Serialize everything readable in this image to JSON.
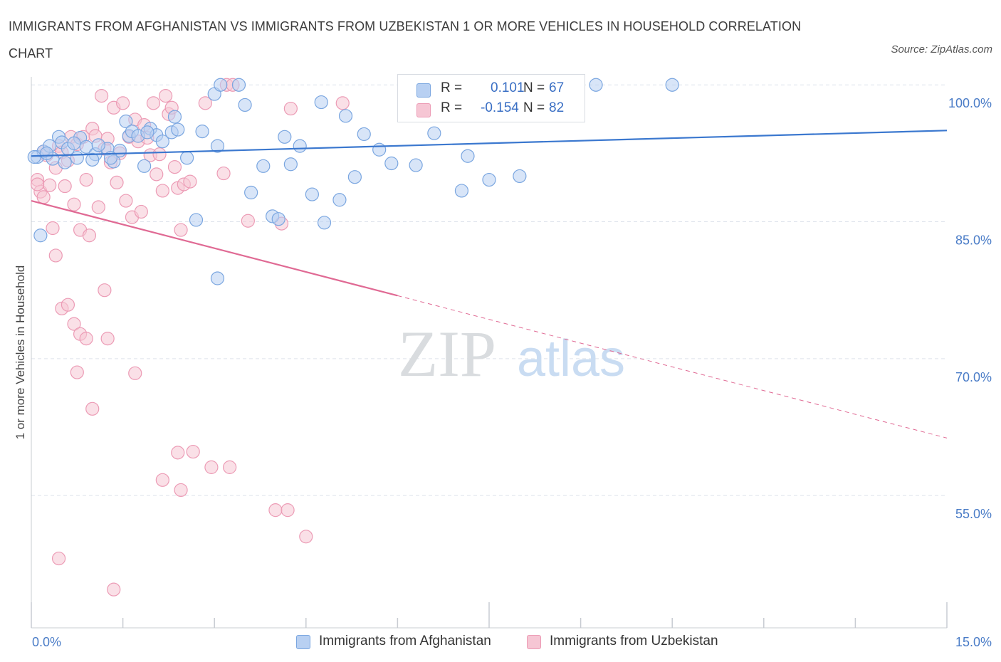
{
  "title": "IMMIGRANTS FROM AFGHANISTAN VS IMMIGRANTS FROM UZBEKISTAN 1 OR MORE VEHICLES IN HOUSEHOLD CORRELATION CHART",
  "source": "Source: ZipAtlas.com",
  "watermark": {
    "zip": "ZIP",
    "atlas": "atlas"
  },
  "legend": {
    "rows": [
      {
        "r_label": "R =",
        "r_value": "0.101",
        "n_label": "N =",
        "n_value": "67"
      },
      {
        "r_label": "R =",
        "r_value": "-0.154",
        "n_label": "N =",
        "n_value": "82"
      }
    ]
  },
  "colors": {
    "blue_fill": "#b8d0f2",
    "blue_stroke": "#7aa6e0",
    "blue_line": "#3b78cf",
    "pink_fill": "#f6c6d4",
    "pink_stroke": "#ec9bb5",
    "pink_line": "#e06a94",
    "grid": "#dde2ea",
    "axis": "#c8ccd2",
    "tick_text": "#4a7cc7"
  },
  "chart_data": {
    "type": "scatter",
    "ylabel": "1 or more Vehicles in Household",
    "xlim": [
      0,
      15
    ],
    "ylim": [
      40.5,
      101.5
    ],
    "x_tick_labels": [
      {
        "value": 0,
        "label": "0.0%"
      },
      {
        "value": 15,
        "label": "15.0%"
      }
    ],
    "y_tick_labels": [
      {
        "value": 100,
        "label": "100.0%"
      },
      {
        "value": 85,
        "label": "85.0%"
      },
      {
        "value": 70,
        "label": "70.0%"
      },
      {
        "value": 55,
        "label": "55.0%"
      }
    ],
    "grid": true,
    "legend_position": "top-center",
    "series": [
      {
        "name": "Immigrants from Afghanistan",
        "color": "#b8d0f2",
        "trend": {
          "x": [
            0,
            15
          ],
          "y": [
            92.2,
            95.0
          ],
          "dashed_from": null
        },
        "points": [
          [
            0.1,
            92.1
          ],
          [
            0.2,
            92.7
          ],
          [
            0.3,
            93.3
          ],
          [
            0.35,
            91.9
          ],
          [
            0.45,
            94.3
          ],
          [
            0.5,
            93.7
          ],
          [
            0.6,
            93.0
          ],
          [
            0.75,
            92.0
          ],
          [
            0.8,
            94.2
          ],
          [
            0.9,
            93.2
          ],
          [
            1.05,
            92.4
          ],
          [
            1.25,
            93.0
          ],
          [
            1.35,
            91.6
          ],
          [
            1.45,
            92.8
          ],
          [
            1.55,
            96.0
          ],
          [
            1.6,
            94.4
          ],
          [
            1.65,
            94.9
          ],
          [
            1.75,
            94.4
          ],
          [
            1.85,
            91.1
          ],
          [
            1.95,
            95.2
          ],
          [
            2.05,
            94.5
          ],
          [
            2.15,
            93.8
          ],
          [
            2.3,
            94.8
          ],
          [
            2.35,
            96.5
          ],
          [
            2.55,
            92.0
          ],
          [
            2.8,
            94.9
          ],
          [
            3.0,
            99.0
          ],
          [
            3.05,
            93.3
          ],
          [
            3.1,
            100.0
          ],
          [
            3.4,
            100.0
          ],
          [
            3.5,
            97.8
          ],
          [
            3.6,
            88.2
          ],
          [
            3.8,
            91.1
          ],
          [
            3.95,
            85.6
          ],
          [
            4.05,
            85.3
          ],
          [
            4.15,
            94.3
          ],
          [
            4.25,
            91.3
          ],
          [
            4.4,
            93.3
          ],
          [
            4.6,
            88.0
          ],
          [
            4.75,
            98.1
          ],
          [
            4.8,
            84.9
          ],
          [
            5.05,
            87.4
          ],
          [
            5.15,
            96.6
          ],
          [
            5.3,
            89.9
          ],
          [
            5.45,
            94.6
          ],
          [
            5.7,
            92.9
          ],
          [
            5.9,
            91.4
          ],
          [
            6.3,
            91.2
          ],
          [
            6.6,
            94.7
          ],
          [
            7.05,
            88.4
          ],
          [
            7.15,
            92.2
          ],
          [
            7.5,
            89.6
          ],
          [
            8.0,
            90.0
          ],
          [
            9.25,
            100.0
          ],
          [
            10.5,
            100.0
          ],
          [
            0.15,
            83.5
          ],
          [
            2.7,
            85.2
          ],
          [
            3.05,
            78.8
          ],
          [
            1.3,
            92.0
          ],
          [
            2.4,
            95.1
          ],
          [
            0.05,
            92.1
          ],
          [
            1.1,
            93.4
          ],
          [
            0.7,
            93.6
          ],
          [
            0.55,
            91.5
          ],
          [
            1.9,
            94.8
          ],
          [
            0.25,
            92.5
          ],
          [
            1.0,
            91.8
          ]
        ]
      },
      {
        "name": "Immigrants from Uzbekistan",
        "color": "#f6c6d4",
        "trend": {
          "x": [
            0,
            15
          ],
          "y": [
            87.3,
            61.3
          ],
          "dashed_from": 6.0
        },
        "points": [
          [
            0.1,
            89.6
          ],
          [
            0.15,
            88.3
          ],
          [
            0.2,
            92.7
          ],
          [
            0.25,
            92.3
          ],
          [
            0.3,
            89.0
          ],
          [
            0.35,
            84.3
          ],
          [
            0.4,
            90.9
          ],
          [
            0.45,
            93.3
          ],
          [
            0.5,
            92.6
          ],
          [
            0.55,
            88.9
          ],
          [
            0.6,
            91.7
          ],
          [
            0.65,
            94.3
          ],
          [
            0.7,
            86.9
          ],
          [
            0.75,
            93.5
          ],
          [
            0.8,
            84.1
          ],
          [
            0.85,
            94.3
          ],
          [
            0.9,
            89.6
          ],
          [
            0.95,
            83.5
          ],
          [
            1.0,
            95.2
          ],
          [
            1.05,
            94.4
          ],
          [
            1.1,
            86.6
          ],
          [
            1.15,
            98.8
          ],
          [
            1.2,
            93.0
          ],
          [
            1.25,
            94.1
          ],
          [
            1.3,
            91.5
          ],
          [
            1.35,
            97.5
          ],
          [
            1.4,
            89.3
          ],
          [
            1.45,
            92.5
          ],
          [
            1.5,
            98.0
          ],
          [
            1.55,
            87.3
          ],
          [
            1.6,
            94.3
          ],
          [
            1.65,
            85.5
          ],
          [
            1.7,
            96.2
          ],
          [
            1.75,
            93.8
          ],
          [
            1.8,
            86.1
          ],
          [
            1.85,
            95.6
          ],
          [
            1.9,
            94.2
          ],
          [
            1.95,
            92.3
          ],
          [
            2.0,
            98.0
          ],
          [
            2.05,
            90.2
          ],
          [
            2.1,
            92.4
          ],
          [
            2.15,
            88.4
          ],
          [
            2.2,
            98.8
          ],
          [
            2.25,
            96.8
          ],
          [
            2.3,
            97.5
          ],
          [
            2.35,
            91.0
          ],
          [
            2.4,
            88.7
          ],
          [
            2.45,
            84.1
          ],
          [
            2.5,
            89.1
          ],
          [
            2.6,
            89.4
          ],
          [
            2.85,
            98.0
          ],
          [
            3.15,
            90.3
          ],
          [
            3.2,
            100.0
          ],
          [
            3.3,
            100.0
          ],
          [
            3.55,
            85.1
          ],
          [
            4.1,
            84.8
          ],
          [
            4.25,
            97.4
          ],
          [
            5.1,
            98.0
          ],
          [
            0.4,
            81.3
          ],
          [
            0.5,
            75.5
          ],
          [
            0.6,
            75.9
          ],
          [
            0.7,
            73.8
          ],
          [
            0.8,
            72.7
          ],
          [
            0.9,
            72.2
          ],
          [
            1.2,
            77.5
          ],
          [
            1.25,
            72.2
          ],
          [
            0.75,
            68.5
          ],
          [
            1.7,
            68.4
          ],
          [
            1.0,
            64.5
          ],
          [
            2.4,
            59.7
          ],
          [
            2.65,
            59.8
          ],
          [
            2.95,
            58.1
          ],
          [
            2.15,
            56.7
          ],
          [
            2.45,
            55.6
          ],
          [
            3.25,
            58.1
          ],
          [
            4.0,
            53.4
          ],
          [
            4.2,
            53.4
          ],
          [
            4.5,
            50.5
          ],
          [
            0.45,
            48.1
          ],
          [
            1.35,
            44.7
          ],
          [
            0.1,
            89.1
          ],
          [
            0.2,
            87.7
          ]
        ]
      }
    ]
  },
  "bottom_legend": [
    {
      "label": "Immigrants from Afghanistan"
    },
    {
      "label": "Immigrants from Uzbekistan"
    }
  ]
}
